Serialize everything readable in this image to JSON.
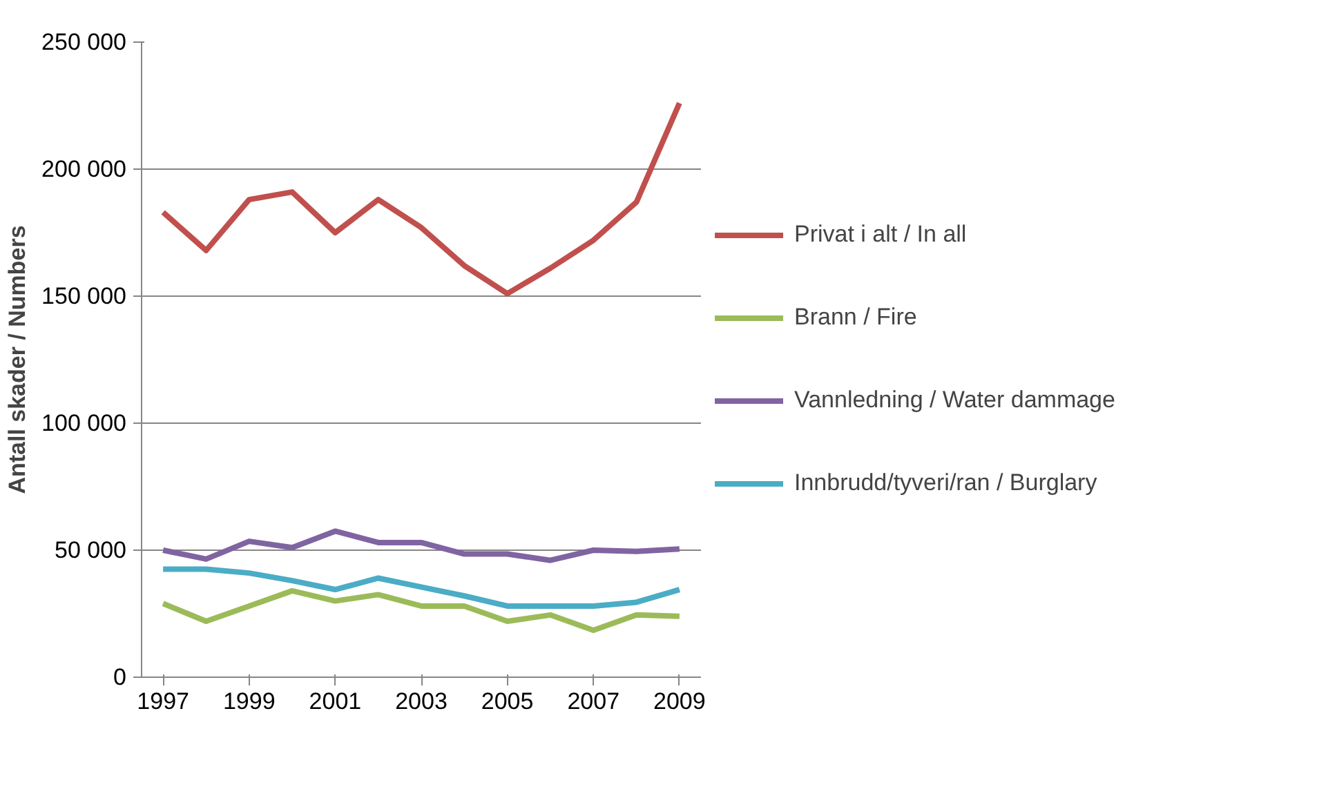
{
  "chart_data": {
    "type": "line",
    "ylabel": "Antall skader / Numbers",
    "x": [
      1997,
      1998,
      1999,
      2000,
      2001,
      2002,
      2003,
      2004,
      2005,
      2006,
      2007,
      2008,
      2009
    ],
    "series": [
      {
        "name": "Privat i alt / In all",
        "color": "#c0504d",
        "values": [
          183000,
          168000,
          188000,
          191000,
          175000,
          188000,
          177000,
          162000,
          151000,
          161000,
          172000,
          187000,
          226000
        ]
      },
      {
        "name": "Brann / Fire",
        "color": "#9bbb59",
        "values": [
          29000,
          22000,
          28000,
          34000,
          30000,
          32500,
          28000,
          28000,
          22000,
          24500,
          18500,
          24500,
          24000
        ]
      },
      {
        "name": "Vannledning / Water dammage",
        "color": "#8064a2",
        "values": [
          50000,
          46500,
          53500,
          51000,
          57500,
          53000,
          53000,
          48500,
          48500,
          46000,
          50000,
          49500,
          50500
        ]
      },
      {
        "name": "Innbrudd/tyveri/ran / Burglary",
        "color": "#4bacc6",
        "values": [
          42500,
          42500,
          41000,
          38000,
          34500,
          39000,
          35500,
          32000,
          28000,
          28000,
          28000,
          29500,
          34500
        ]
      }
    ],
    "xlim": [
      1996.5,
      2009.5
    ],
    "xticks": [
      1997,
      1999,
      2001,
      2003,
      2005,
      2007,
      2009
    ],
    "ylim": [
      0,
      250000
    ],
    "yticks": [
      {
        "value": 0,
        "label": "0"
      },
      {
        "value": 50000,
        "label": "50 000"
      },
      {
        "value": 100000,
        "label": "100 000"
      },
      {
        "value": 150000,
        "label": "150 000"
      },
      {
        "value": 200000,
        "label": "200 000"
      },
      {
        "value": 250000,
        "label": "250 000"
      }
    ],
    "grid": "y",
    "legend": "right",
    "marker": "none",
    "line_style": "solid"
  }
}
